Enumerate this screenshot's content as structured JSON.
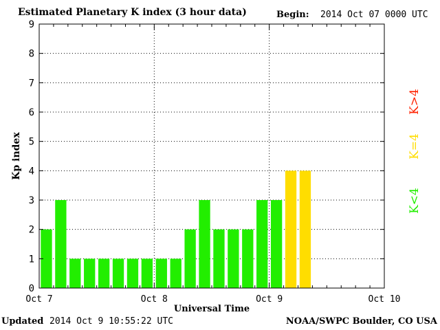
{
  "header": {
    "title": "Estimated Planetary K index (3 hour data)",
    "begin_label": "Begin:",
    "begin_value": "2014 Oct 07 0000 UTC"
  },
  "footer": {
    "updated_label": "Updated",
    "updated_value": "2014 Oct  9 10:55:22 UTC",
    "source": "NOAA/SWPC Boulder, CO USA"
  },
  "legend": {
    "below": "K<4",
    "equal": "K=4",
    "above": "K>4"
  },
  "colors": {
    "below": "#22ee00",
    "equal": "#ffdd00",
    "above": "#ff2200",
    "grid": "#000000",
    "axis": "#000000"
  },
  "chart_data": {
    "type": "bar",
    "title": "Estimated Planetary K index (3 hour data)",
    "xlabel": "Universal Time",
    "ylabel": "Kp index",
    "ylim": [
      0,
      9
    ],
    "yticks": [
      "0",
      "1",
      "2",
      "3",
      "4",
      "5",
      "6",
      "7",
      "8",
      "9"
    ],
    "xticks": [
      "Oct 7",
      "Oct 8",
      "Oct 9",
      "Oct 10"
    ],
    "grid": true,
    "legend_placement": "right",
    "categories": [
      "Oct 7 00",
      "Oct 7 03",
      "Oct 7 06",
      "Oct 7 09",
      "Oct 7 12",
      "Oct 7 15",
      "Oct 7 18",
      "Oct 7 21",
      "Oct 8 00",
      "Oct 8 03",
      "Oct 8 06",
      "Oct 8 09",
      "Oct 8 12",
      "Oct 8 15",
      "Oct 8 18",
      "Oct 8 21",
      "Oct 9 00",
      "Oct 9 03",
      "Oct 9 06"
    ],
    "values": [
      2,
      3,
      1,
      1,
      1,
      1,
      1,
      1,
      1,
      1,
      2,
      3,
      2,
      2,
      2,
      3,
      3,
      4,
      4
    ]
  }
}
